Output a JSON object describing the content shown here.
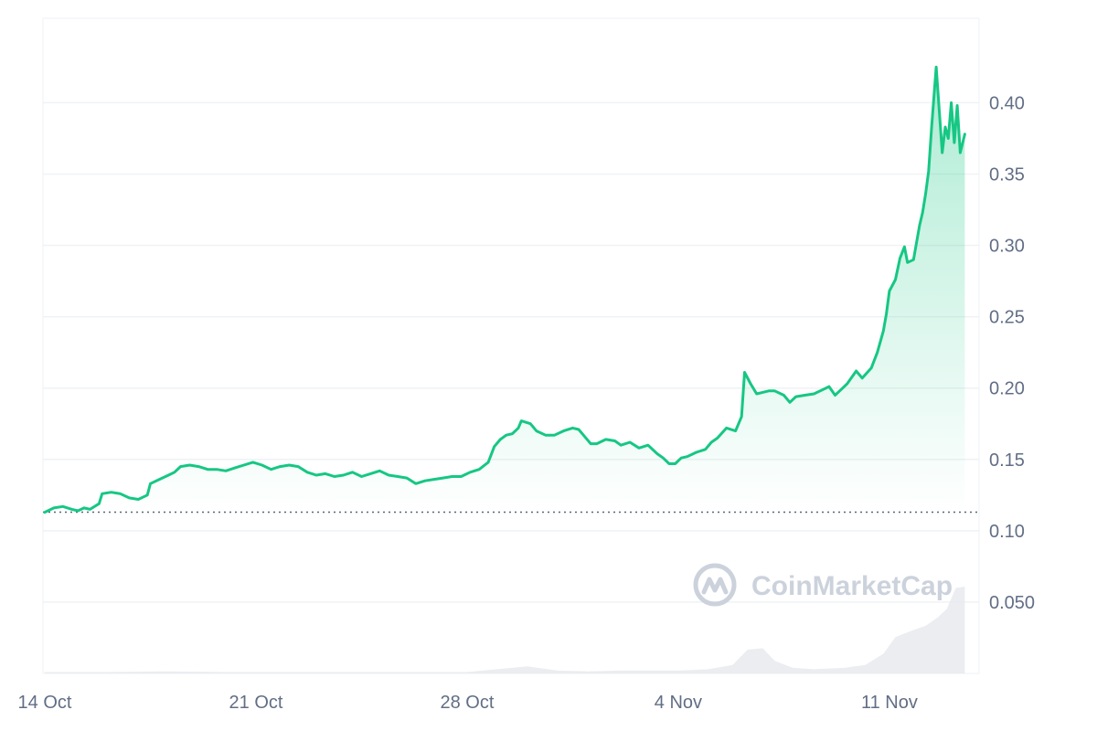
{
  "colors": {
    "line": "#16c784",
    "grid": "#eff2f5",
    "tick_text": "#616e85",
    "volume": "#e6e9ee",
    "baseline": "#58667e",
    "watermark": "#ccd2dc"
  },
  "watermark": {
    "text": "CoinMarketCap",
    "icon": "coinmarketcap-logo-icon"
  },
  "chart_data": {
    "type": "area",
    "title": "",
    "xlabel": "",
    "ylabel": "",
    "ylim": [
      0,
      0.45
    ],
    "yticks": [
      0.05,
      0.1,
      0.15,
      0.2,
      0.25,
      0.3,
      0.35,
      0.4
    ],
    "ytick_labels": [
      "0.050",
      "0.10",
      "0.15",
      "0.20",
      "0.25",
      "0.30",
      "0.35",
      "0.40"
    ],
    "xticks": [
      {
        "label": "14 Oct",
        "x": 0
      },
      {
        "label": "21 Oct",
        "x": 7
      },
      {
        "label": "28 Oct",
        "x": 14
      },
      {
        "label": "4 Nov",
        "x": 21
      },
      {
        "label": "11 Nov",
        "x": 28
      }
    ],
    "xlim": [
      0,
      30
    ],
    "baseline_value": 0.113,
    "grid": true,
    "legend": "none",
    "series": [
      {
        "values": [
          [
            0,
            0.113
          ],
          [
            0.3,
            0.116
          ],
          [
            0.6,
            0.117
          ],
          [
            0.9,
            0.115
          ],
          [
            1.1,
            0.114
          ],
          [
            1.3,
            0.116
          ],
          [
            1.5,
            0.115
          ],
          [
            1.8,
            0.119
          ],
          [
            1.9,
            0.126
          ],
          [
            2.2,
            0.127
          ],
          [
            2.5,
            0.126
          ],
          [
            2.8,
            0.123
          ],
          [
            3.1,
            0.122
          ],
          [
            3.4,
            0.125
          ],
          [
            3.5,
            0.133
          ],
          [
            3.8,
            0.136
          ],
          [
            4.1,
            0.139
          ],
          [
            4.3,
            0.141
          ],
          [
            4.5,
            0.145
          ],
          [
            4.8,
            0.146
          ],
          [
            5.1,
            0.145
          ],
          [
            5.4,
            0.143
          ],
          [
            5.7,
            0.143
          ],
          [
            6.0,
            0.142
          ],
          [
            6.3,
            0.144
          ],
          [
            6.6,
            0.146
          ],
          [
            6.9,
            0.148
          ],
          [
            7.2,
            0.146
          ],
          [
            7.5,
            0.143
          ],
          [
            7.8,
            0.145
          ],
          [
            8.1,
            0.146
          ],
          [
            8.4,
            0.145
          ],
          [
            8.7,
            0.141
          ],
          [
            9.0,
            0.139
          ],
          [
            9.3,
            0.14
          ],
          [
            9.6,
            0.138
          ],
          [
            9.9,
            0.139
          ],
          [
            10.2,
            0.141
          ],
          [
            10.5,
            0.138
          ],
          [
            10.8,
            0.14
          ],
          [
            11.1,
            0.142
          ],
          [
            11.4,
            0.139
          ],
          [
            11.7,
            0.138
          ],
          [
            12.0,
            0.137
          ],
          [
            12.3,
            0.133
          ],
          [
            12.6,
            0.135
          ],
          [
            12.9,
            0.136
          ],
          [
            13.2,
            0.137
          ],
          [
            13.5,
            0.138
          ],
          [
            13.8,
            0.138
          ],
          [
            14.1,
            0.141
          ],
          [
            14.4,
            0.143
          ],
          [
            14.7,
            0.148
          ],
          [
            14.9,
            0.159
          ],
          [
            15.1,
            0.164
          ],
          [
            15.3,
            0.167
          ],
          [
            15.5,
            0.168
          ],
          [
            15.7,
            0.172
          ],
          [
            15.8,
            0.177
          ],
          [
            16.1,
            0.175
          ],
          [
            16.3,
            0.17
          ],
          [
            16.6,
            0.167
          ],
          [
            16.9,
            0.167
          ],
          [
            17.2,
            0.17
          ],
          [
            17.5,
            0.172
          ],
          [
            17.7,
            0.171
          ],
          [
            17.9,
            0.166
          ],
          [
            18.1,
            0.161
          ],
          [
            18.3,
            0.161
          ],
          [
            18.6,
            0.164
          ],
          [
            18.9,
            0.163
          ],
          [
            19.1,
            0.16
          ],
          [
            19.4,
            0.162
          ],
          [
            19.7,
            0.158
          ],
          [
            20.0,
            0.16
          ],
          [
            20.3,
            0.154
          ],
          [
            20.5,
            0.151
          ],
          [
            20.7,
            0.147
          ],
          [
            20.9,
            0.147
          ],
          [
            21.1,
            0.151
          ],
          [
            21.3,
            0.152
          ],
          [
            21.6,
            0.155
          ],
          [
            21.9,
            0.157
          ],
          [
            22.1,
            0.162
          ],
          [
            22.3,
            0.165
          ],
          [
            22.6,
            0.172
          ],
          [
            22.9,
            0.17
          ],
          [
            23.1,
            0.18
          ],
          [
            23.2,
            0.211
          ],
          [
            23.4,
            0.203
          ],
          [
            23.6,
            0.196
          ],
          [
            23.8,
            0.197
          ],
          [
            24.0,
            0.198
          ],
          [
            24.2,
            0.198
          ],
          [
            24.5,
            0.195
          ],
          [
            24.7,
            0.19
          ],
          [
            24.9,
            0.194
          ],
          [
            25.2,
            0.195
          ],
          [
            25.5,
            0.196
          ],
          [
            25.8,
            0.199
          ],
          [
            26.0,
            0.201
          ],
          [
            26.2,
            0.195
          ],
          [
            26.4,
            0.199
          ],
          [
            26.6,
            0.203
          ],
          [
            26.9,
            0.212
          ],
          [
            27.1,
            0.207
          ],
          [
            27.4,
            0.214
          ],
          [
            27.6,
            0.225
          ],
          [
            27.8,
            0.24
          ],
          [
            27.9,
            0.252
          ],
          [
            28.0,
            0.268
          ],
          [
            28.2,
            0.276
          ],
          [
            28.35,
            0.291
          ],
          [
            28.5,
            0.299
          ],
          [
            28.6,
            0.288
          ],
          [
            28.8,
            0.29
          ],
          [
            29.0,
            0.314
          ],
          [
            29.1,
            0.323
          ],
          [
            29.2,
            0.336
          ],
          [
            29.3,
            0.352
          ],
          [
            29.4,
            0.383
          ],
          [
            29.55,
            0.425
          ],
          [
            29.65,
            0.395
          ],
          [
            29.75,
            0.365
          ],
          [
            29.85,
            0.383
          ],
          [
            29.95,
            0.375
          ],
          [
            30.05,
            0.4
          ],
          [
            30.15,
            0.372
          ],
          [
            30.25,
            0.398
          ],
          [
            30.35,
            0.365
          ],
          [
            30.5,
            0.378
          ]
        ]
      }
    ],
    "volume": [
      [
        0,
        0.001
      ],
      [
        2,
        0.001
      ],
      [
        4,
        0.0015
      ],
      [
        6,
        0.001
      ],
      [
        8,
        0.001
      ],
      [
        10,
        0.001
      ],
      [
        12,
        0.001
      ],
      [
        14,
        0.001
      ],
      [
        15,
        0.003
      ],
      [
        16,
        0.005
      ],
      [
        17,
        0.002
      ],
      [
        18,
        0.0015
      ],
      [
        19,
        0.002
      ],
      [
        20,
        0.002
      ],
      [
        21,
        0.002
      ],
      [
        22,
        0.003
      ],
      [
        22.8,
        0.006
      ],
      [
        23.3,
        0.017
      ],
      [
        23.8,
        0.018
      ],
      [
        24.2,
        0.009
      ],
      [
        24.8,
        0.004
      ],
      [
        25.5,
        0.003
      ],
      [
        26.5,
        0.004
      ],
      [
        27.2,
        0.006
      ],
      [
        27.8,
        0.014
      ],
      [
        28.2,
        0.026
      ],
      [
        28.8,
        0.031
      ],
      [
        29.2,
        0.034
      ],
      [
        29.6,
        0.04
      ],
      [
        29.9,
        0.046
      ],
      [
        30.2,
        0.061
      ],
      [
        30.5,
        0.062
      ]
    ]
  }
}
